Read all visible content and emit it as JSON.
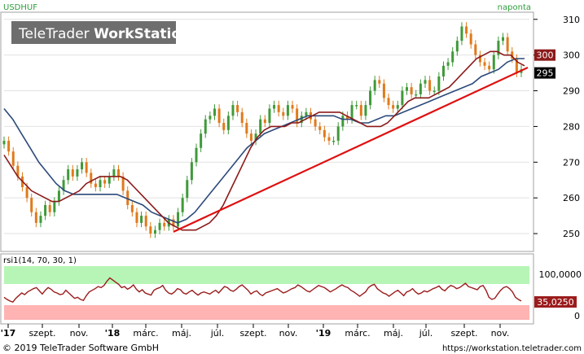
{
  "header": {
    "symbol": "USDHUF",
    "period": "naponta",
    "watermark_light": "TeleTrader ",
    "watermark_bold": "WorkStation"
  },
  "footer": {
    "copyright": "© 2019 TeleTrader Software GmbH",
    "url": "https://workstation.teletrader.com"
  },
  "colors": {
    "up_candle": "#3f9a3a",
    "down_candle": "#e07a1c",
    "ma_short": "#8b1a1a",
    "ma_long": "#2c4a7a",
    "trendline": "#e01010",
    "rsi_line": "#9b1c1c",
    "overbought_zone": "#b6f5b6",
    "oversold_zone": "#ffb3b3",
    "last_ma_badge": "#8b1a1a",
    "last_price_badge": "#000000"
  },
  "chart_data": [
    {
      "type": "line",
      "title": "USDHUF",
      "subtitle": "naponta",
      "x_tick_labels": [
        "'17",
        "szept.",
        "nov.",
        "'18",
        "márc.",
        "máj.",
        "júl.",
        "szept.",
        "nov.",
        "'19",
        "márc.",
        "máj.",
        "júl.",
        "szept.",
        "nov."
      ],
      "y_ticks": [
        250,
        260,
        270,
        280,
        290,
        300,
        310
      ],
      "y_tick_labels": [
        "250",
        "260",
        "270",
        "280",
        "290",
        "300",
        "310"
      ],
      "ylim": [
        245,
        312
      ],
      "grid": true,
      "series": [
        {
          "style": "candlestick",
          "values": [
            276,
            273,
            269,
            266,
            263,
            260,
            256,
            253,
            255,
            258,
            256,
            259,
            262,
            265,
            268,
            266,
            268,
            270,
            267,
            264,
            263,
            265,
            264,
            266,
            268,
            266,
            262,
            258,
            256,
            253,
            255,
            252,
            250,
            251,
            253,
            252,
            254,
            252,
            256,
            260,
            265,
            270,
            274,
            278,
            282,
            283,
            285,
            281,
            279,
            283,
            286,
            284,
            281,
            278,
            276,
            278,
            282,
            281,
            285,
            286,
            284,
            283,
            286,
            285,
            281,
            283,
            284,
            282,
            280,
            279,
            277,
            276,
            276,
            280,
            283,
            282,
            286,
            286,
            283,
            286,
            290,
            293,
            292,
            288,
            286,
            285,
            286,
            290,
            291,
            289,
            289,
            292,
            293,
            290,
            290,
            294,
            297,
            298,
            301,
            304,
            308,
            306,
            303,
            300,
            298,
            297,
            296,
            300,
            304,
            305,
            301,
            299,
            295,
            296
          ]
        },
        {
          "style": "line",
          "role": "short moving average",
          "values": [
            272,
            269,
            266,
            264,
            262,
            261,
            260,
            259,
            259,
            260,
            261,
            262,
            264,
            265,
            266,
            266,
            266,
            266,
            265,
            263,
            261,
            259,
            257,
            255,
            253,
            252,
            251,
            251,
            251,
            252,
            253,
            255,
            258,
            262,
            266,
            270,
            274,
            277,
            279,
            280,
            280,
            280,
            281,
            281,
            282,
            283,
            284,
            284,
            284,
            284,
            283,
            282,
            281,
            280,
            280,
            280,
            281,
            283,
            285,
            287,
            288,
            288,
            288,
            289,
            290,
            291,
            293,
            295,
            297,
            299,
            300,
            301,
            301,
            300,
            300,
            298,
            297
          ]
        },
        {
          "style": "line",
          "role": "long moving average",
          "values": [
            285,
            282,
            278,
            274,
            270,
            267,
            264,
            262,
            261,
            261,
            261,
            261,
            261,
            261,
            260,
            259,
            258,
            256,
            255,
            254,
            253,
            254,
            256,
            259,
            262,
            265,
            268,
            271,
            274,
            276,
            278,
            279,
            280,
            281,
            282,
            283,
            283,
            283,
            283,
            282,
            282,
            281,
            281,
            282,
            283,
            283,
            284,
            285,
            286,
            287,
            288,
            289,
            290,
            291,
            292,
            294,
            295,
            296,
            298,
            299,
            299
          ]
        },
        {
          "style": "line",
          "role": "trendline",
          "values": [
            250.5,
            296.5
          ]
        }
      ],
      "last_value_badges": [
        "300",
        "295"
      ]
    },
    {
      "type": "line",
      "title": "rsi1(14, 70, 30, 1)",
      "ylim": [
        0,
        100
      ],
      "y_tick_labels": [
        "100,0000",
        "0"
      ],
      "last_value_badge": "35,0250",
      "zones": [
        {
          "from": 70,
          "to": 100,
          "color": "#b6f5b6"
        },
        {
          "from": 0,
          "to": 30,
          "color": "#ffb3b3"
        }
      ],
      "values": [
        42,
        38,
        35,
        33,
        40,
        45,
        50,
        47,
        52,
        55,
        58,
        60,
        54,
        48,
        55,
        60,
        57,
        52,
        50,
        47,
        48,
        55,
        50,
        45,
        40,
        42,
        38,
        36,
        45,
        52,
        55,
        58,
        62,
        60,
        64,
        72,
        78,
        74,
        70,
        66,
        60,
        62,
        57,
        60,
        65,
        57,
        52,
        56,
        50,
        48,
        46,
        55,
        58,
        60,
        64,
        55,
        50,
        48,
        52,
        58,
        56,
        50,
        48,
        52,
        55,
        50,
        46,
        50,
        52,
        50,
        48,
        52,
        55,
        50,
        56,
        62,
        60,
        55,
        53,
        57,
        62,
        65,
        60,
        55,
        48,
        52,
        54,
        48,
        45,
        50,
        52,
        54,
        56,
        58,
        54,
        50,
        52,
        55,
        58,
        60,
        65,
        62,
        58,
        54,
        52,
        56,
        60,
        64,
        62,
        60,
        56,
        52,
        55,
        58,
        62,
        65,
        62,
        60,
        55,
        52,
        48,
        44,
        48,
        52,
        60,
        64,
        66,
        58,
        54,
        50,
        48,
        44,
        48,
        52,
        55,
        50,
        45,
        52,
        54,
        58,
        52,
        48,
        50,
        54,
        52,
        55,
        58,
        60,
        63,
        57,
        54,
        60,
        64,
        62,
        58,
        60,
        64,
        68,
        62,
        60,
        58,
        56,
        62,
        64,
        55,
        42,
        38,
        40,
        48,
        55,
        60,
        62,
        58,
        52,
        42,
        38,
        35
      ]
    }
  ]
}
